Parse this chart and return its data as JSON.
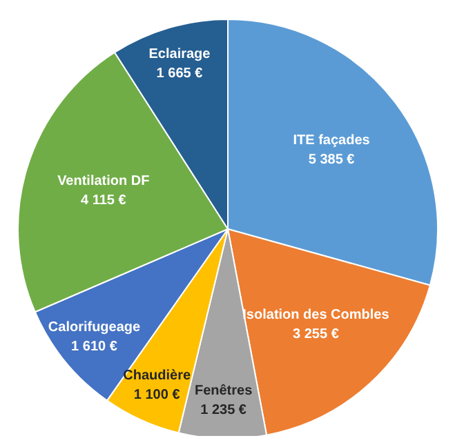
{
  "chart_data": {
    "type": "pie",
    "categories": [
      "ITE façades",
      "Isolation des Combles",
      "Fenêtres",
      "Chaudière",
      "Calorifugeage",
      "Ventilation DF",
      "Eclairage"
    ],
    "values": [
      5385,
      3255,
      1235,
      1100,
      1610,
      4115,
      1665
    ],
    "value_labels": [
      "5 385 €",
      "3 255 €",
      "1 235 €",
      "1 100 €",
      "1 610 €",
      "4 115 €",
      "1 665 €"
    ],
    "colors": [
      "#5b9bd5",
      "#ed7d31",
      "#a5a5a5",
      "#ffc000",
      "#4472c4",
      "#70ad47",
      "#255e91"
    ],
    "legend": false
  }
}
